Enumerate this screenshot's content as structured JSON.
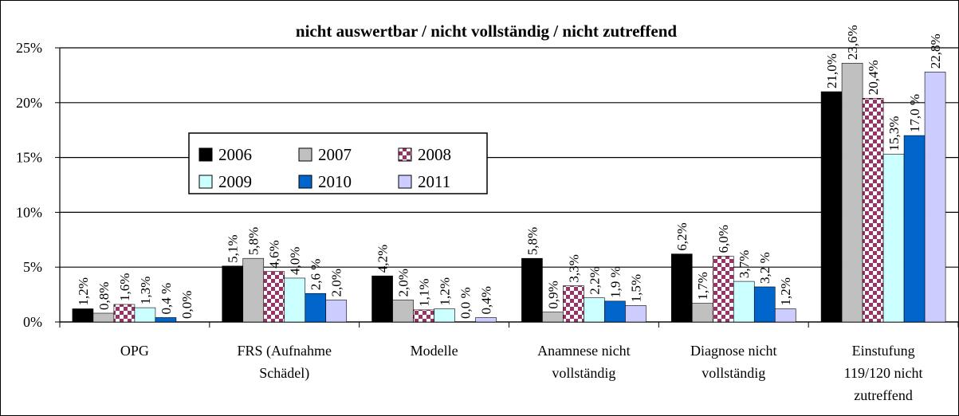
{
  "chart_data": {
    "type": "bar",
    "title": "nicht auswertbar / nicht vollständig / nicht zutreffend",
    "categories": [
      "OPG",
      "FRS (Aufnahme Schädel)",
      "Modelle",
      "Anamnese nicht vollständig",
      "Diagnose nicht vollständig",
      "Einstufung 119/120 nicht zutreffend"
    ],
    "series": [
      {
        "name": "2006",
        "color": "#000000",
        "values": [
          1.2,
          5.1,
          4.2,
          5.8,
          6.2,
          21.0
        ],
        "value_labels": [
          "1,2%",
          "5,1%",
          "4,2%",
          "5,8%",
          "6,2%",
          "21,0%"
        ]
      },
      {
        "name": "2007",
        "color": "#c0c0c0",
        "values": [
          0.8,
          5.8,
          2.0,
          0.9,
          1.7,
          23.6
        ],
        "value_labels": [
          "0,8%",
          "5,8%",
          "2,0%",
          "0,9%",
          "1,7%",
          "23,6%"
        ]
      },
      {
        "name": "2008",
        "color": "#993366",
        "fill_pattern": "checkered",
        "values": [
          1.6,
          4.6,
          1.1,
          3.3,
          6.0,
          20.4
        ],
        "value_labels": [
          "1,6%",
          "4,6%",
          "1,1%",
          "3,3%",
          "6,0%",
          "20,4%"
        ]
      },
      {
        "name": "2009",
        "color": "#ccffff",
        "values": [
          1.3,
          4.0,
          1.2,
          2.2,
          3.7,
          15.3
        ],
        "value_labels": [
          "1,3%",
          "4,0%",
          "1,2%",
          "2,2%",
          "3,7%",
          "15,3%"
        ]
      },
      {
        "name": "2010",
        "color": "#0066cc",
        "values": [
          0.4,
          2.6,
          0.0,
          1.9,
          3.2,
          17.0
        ],
        "value_labels": [
          "0,4 %",
          "2,6 %",
          "0,0 %",
          "1,9 %",
          "3,2 %",
          "17,0 %"
        ]
      },
      {
        "name": "2011",
        "color": "#ccccff",
        "values": [
          0.0,
          2.0,
          0.4,
          1.5,
          1.2,
          22.8
        ],
        "value_labels": [
          "0,0%",
          "2,0%",
          "0,4%",
          "1,5%",
          "1,2%",
          "22,8%"
        ]
      }
    ],
    "ylim": [
      0,
      25
    ],
    "yticks": [
      {
        "value": 0,
        "label": "0%"
      },
      {
        "value": 5,
        "label": "5%"
      },
      {
        "value": 10,
        "label": "10%"
      },
      {
        "value": 15,
        "label": "15%"
      },
      {
        "value": 20,
        "label": "20%"
      },
      {
        "value": 25,
        "label": "25%"
      }
    ],
    "grid": true
  }
}
